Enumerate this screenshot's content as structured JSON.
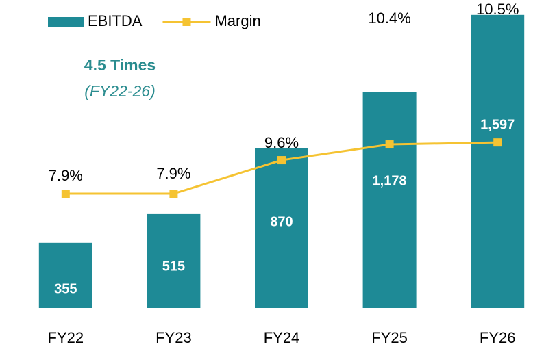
{
  "chart_data": {
    "type": "bar_line",
    "categories": [
      "FY22",
      "FY23",
      "FY24",
      "FY25",
      "FY26"
    ],
    "series": [
      {
        "name": "EBITDA",
        "color": "#1e8a96",
        "type": "bar",
        "values": [
          355,
          515,
          870,
          1178,
          1597
        ],
        "value_labels": [
          "355",
          "515",
          "870",
          "1,178",
          "1,597"
        ]
      },
      {
        "name": "Margin",
        "color": "#f5c332",
        "type": "line",
        "axis": "y2",
        "values": [
          7.9,
          7.9,
          9.6,
          10.4,
          10.5
        ],
        "value_labels": [
          "7.9%",
          "7.9%",
          "9.6%",
          "10.4%",
          "10.5%"
        ]
      }
    ],
    "ylim": [
      0,
      1600
    ],
    "y2lim": [
      2.1,
      17
    ],
    "annotations": [
      "4.5 Times",
      "(FY22-26)"
    ],
    "legend": "top-left"
  }
}
